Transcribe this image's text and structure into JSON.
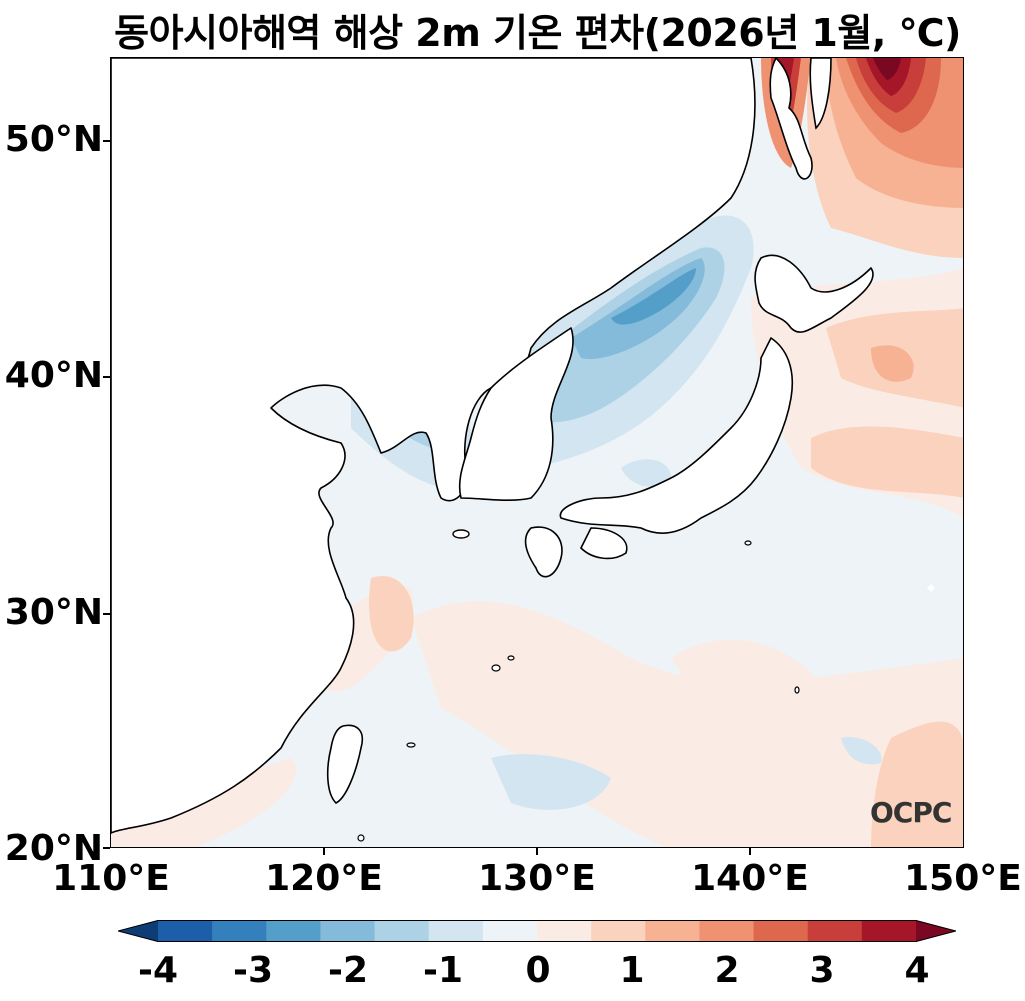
{
  "title": "동아시아해역 해상 2m 기온 편차(2026년 1월, ℃)",
  "lat_labels": [
    "50°N",
    "40°N",
    "30°N",
    "20°N"
  ],
  "lon_labels": [
    "110°E",
    "120°E",
    "130°E",
    "140°E",
    "150°E"
  ],
  "colorbar": {
    "labels": [
      "-4",
      "-3",
      "-2",
      "-1",
      "0",
      "1",
      "2",
      "3",
      "4"
    ],
    "colors": [
      "#0d3d74",
      "#1c5fa8",
      "#3480bc",
      "#549fca",
      "#84bbda",
      "#add2e6",
      "#d2e5f0",
      "#edf3f6",
      "#faece4",
      "#fbd2bd",
      "#f6b293",
      "#ee9272",
      "#de684e",
      "#c83e3a",
      "#a61629",
      "#7a0822"
    ]
  },
  "watermark": "OCPC"
}
